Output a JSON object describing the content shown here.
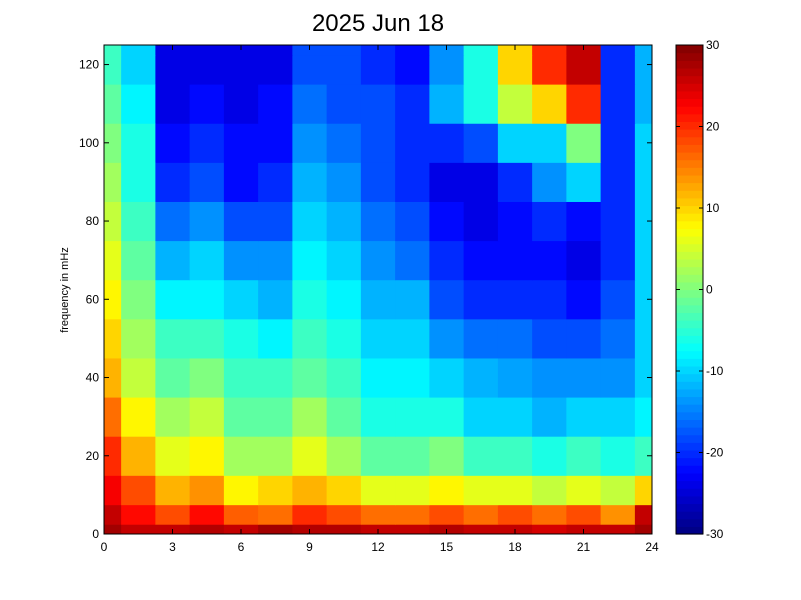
{
  "chart_data": {
    "type": "heatmap",
    "title": "2025 Jun 18",
    "xlabel": "",
    "ylabel": "frequency in mHz",
    "xlim": [
      0,
      24
    ],
    "ylim": [
      0,
      125
    ],
    "x_ticks": [
      0,
      3,
      6,
      9,
      12,
      15,
      18,
      21,
      24
    ],
    "y_ticks": [
      0,
      20,
      40,
      60,
      80,
      100,
      120
    ],
    "colorbar": {
      "colormap": "jet",
      "range": [
        -30,
        30
      ],
      "ticks": [
        -30,
        -20,
        -10,
        0,
        10,
        20,
        30
      ]
    },
    "time_bins_hours": [
      0,
      1.5,
      3,
      4.5,
      6,
      7.5,
      9,
      10.5,
      12,
      13.5,
      15,
      16.5,
      18,
      19.5,
      21,
      22.5,
      24
    ],
    "freq_bins_mhz": [
      0,
      5,
      10,
      20,
      30,
      40,
      50,
      60,
      70,
      80,
      90,
      100,
      110,
      120,
      125
    ],
    "values": [
      [
        28,
        26,
        26,
        27,
        26,
        28,
        27,
        27,
        26,
        26,
        27,
        26,
        26,
        25,
        26,
        26,
        28
      ],
      [
        26,
        22,
        18,
        22,
        17,
        16,
        20,
        18,
        16,
        16,
        18,
        16,
        18,
        16,
        18,
        14,
        26
      ],
      [
        23,
        18,
        12,
        14,
        8,
        10,
        12,
        10,
        6,
        6,
        8,
        6,
        6,
        4,
        6,
        4,
        10
      ],
      [
        20,
        12,
        6,
        8,
        2,
        2,
        6,
        2,
        -2,
        -2,
        0,
        -4,
        -4,
        -6,
        -4,
        -6,
        -4
      ],
      [
        16,
        8,
        2,
        4,
        -2,
        -2,
        2,
        -2,
        -6,
        -6,
        -6,
        -10,
        -10,
        -12,
        -10,
        -10,
        -8
      ],
      [
        12,
        4,
        -2,
        0,
        -4,
        -4,
        -2,
        -4,
        -8,
        -8,
        -10,
        -12,
        -13,
        -14,
        -14,
        -14,
        -10
      ],
      [
        10,
        2,
        -4,
        -4,
        -6,
        -8,
        -4,
        -6,
        -10,
        -10,
        -14,
        -16,
        -16,
        -18,
        -18,
        -16,
        -10
      ],
      [
        8,
        0,
        -8,
        -8,
        -10,
        -12,
        -6,
        -8,
        -12,
        -12,
        -18,
        -20,
        -20,
        -20,
        -22,
        -18,
        -10
      ],
      [
        6,
        -2,
        -12,
        -10,
        -14,
        -14,
        -8,
        -10,
        -14,
        -16,
        -20,
        -22,
        -22,
        -22,
        -24,
        -20,
        -10
      ],
      [
        4,
        -4,
        -16,
        -14,
        -18,
        -18,
        -10,
        -12,
        -16,
        -18,
        -22,
        -24,
        -22,
        -20,
        -22,
        -20,
        -10
      ],
      [
        2,
        -6,
        -20,
        -18,
        -22,
        -20,
        -12,
        -14,
        -18,
        -20,
        -24,
        -24,
        -20,
        -14,
        -10,
        -20,
        -10
      ],
      [
        0,
        -6,
        -22,
        -20,
        -22,
        -22,
        -14,
        -16,
        -18,
        -20,
        -20,
        -18,
        -10,
        -10,
        0,
        -20,
        -10
      ],
      [
        -2,
        -8,
        -24,
        -22,
        -24,
        -22,
        -16,
        -18,
        -18,
        -20,
        -12,
        -6,
        4,
        10,
        20,
        -20,
        -12
      ],
      [
        -4,
        -10,
        -24,
        -24,
        -24,
        -24,
        -18,
        -18,
        -20,
        -22,
        -14,
        -6,
        10,
        20,
        26,
        -20,
        -12
      ],
      [
        -4,
        -10,
        -24,
        -24,
        -24,
        -24,
        -18,
        -18,
        -20,
        -22,
        -14,
        -6,
        10,
        20,
        26,
        -20,
        -12
      ]
    ]
  }
}
